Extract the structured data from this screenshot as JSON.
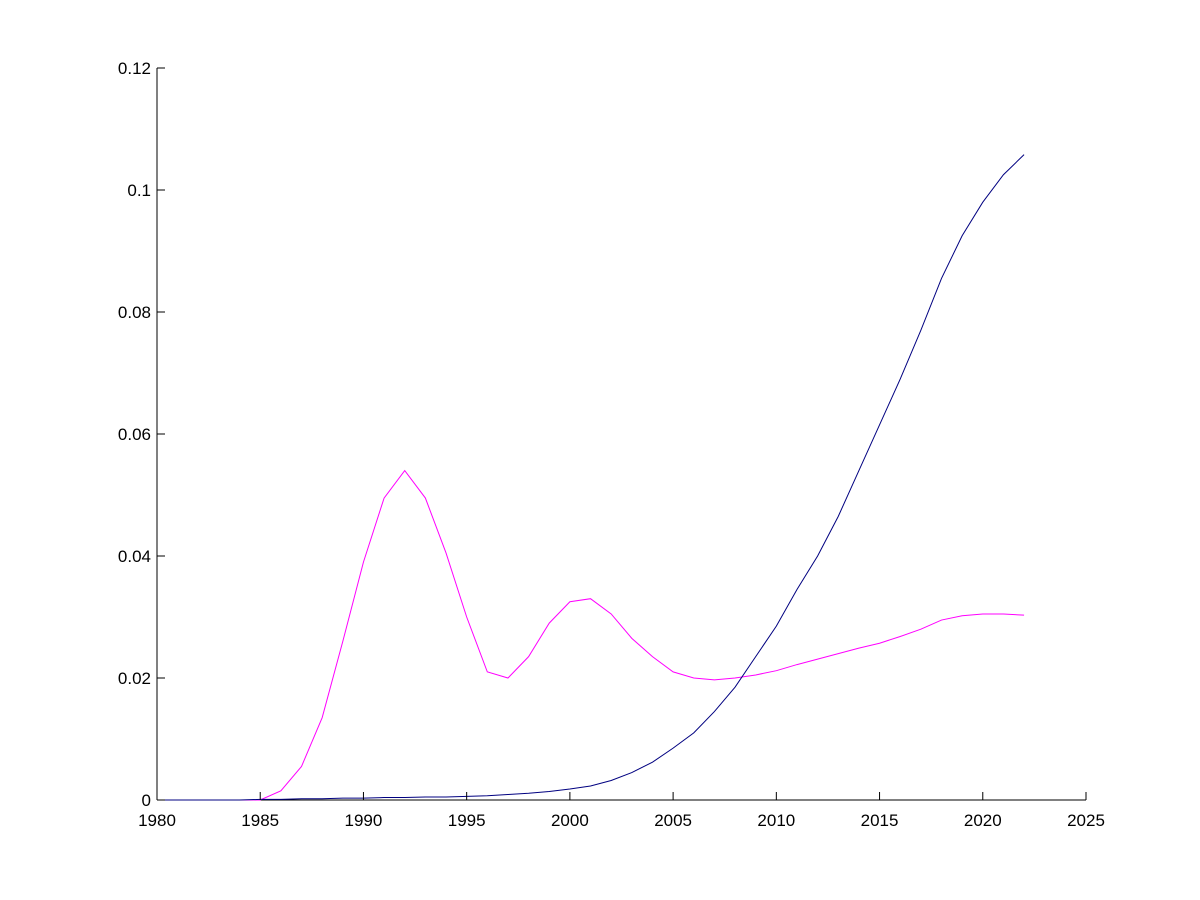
{
  "chart_data": {
    "type": "line",
    "title": "",
    "xlabel": "",
    "ylabel": "",
    "xlim": [
      1980,
      2025
    ],
    "ylim": [
      0,
      0.12
    ],
    "grid": false,
    "xticks": [
      1980,
      1985,
      1990,
      1995,
      2000,
      2005,
      2010,
      2015,
      2020,
      2025
    ],
    "xtick_labels": [
      "1980",
      "1985",
      "1990",
      "1995",
      "2000",
      "2005",
      "2010",
      "2015",
      "2020",
      "2025"
    ],
    "yticks": [
      0,
      0.02,
      0.04,
      0.06,
      0.08,
      0.1,
      0.12
    ],
    "ytick_labels": [
      "0",
      "0.02",
      "0.04",
      "0.06",
      "0.08",
      "0.1",
      "0.12"
    ],
    "series": [
      {
        "color": "#ff00ff",
        "x": [
          1980,
          1981,
          1982,
          1983,
          1984,
          1985,
          1986,
          1987,
          1988,
          1989,
          1990,
          1991,
          1992,
          1993,
          1994,
          1995,
          1996,
          1997,
          1998,
          1999,
          2000,
          2001,
          2002,
          2003,
          2004,
          2005,
          2006,
          2007,
          2008,
          2009,
          2010,
          2011,
          2012,
          2013,
          2014,
          2015,
          2016,
          2017,
          2018,
          2019,
          2020,
          2021,
          2022
        ],
        "y": [
          0,
          0,
          0,
          0,
          0,
          0,
          0.0015,
          0.0055,
          0.0135,
          0.026,
          0.039,
          0.0495,
          0.054,
          0.0495,
          0.0405,
          0.03,
          0.021,
          0.02,
          0.0235,
          0.029,
          0.0325,
          0.033,
          0.0305,
          0.0265,
          0.0235,
          0.021,
          0.02,
          0.0197,
          0.02,
          0.0205,
          0.0212,
          0.0222,
          0.0231,
          0.024,
          0.0249,
          0.0257,
          0.0268,
          0.028,
          0.0295,
          0.0302,
          0.0305,
          0.0305,
          0.0303
        ]
      },
      {
        "color": "#000080",
        "x": [
          1980,
          1981,
          1982,
          1983,
          1984,
          1985,
          1986,
          1987,
          1988,
          1989,
          1990,
          1991,
          1992,
          1993,
          1994,
          1995,
          1996,
          1997,
          1998,
          1999,
          2000,
          2001,
          2002,
          2003,
          2004,
          2005,
          2006,
          2007,
          2008,
          2009,
          2010,
          2011,
          2012,
          2013,
          2014,
          2015,
          2016,
          2017,
          2018,
          2019,
          2020,
          2021,
          2022
        ],
        "y": [
          0,
          0,
          0,
          0,
          0,
          0.0001,
          0.0001,
          0.0002,
          0.0002,
          0.0003,
          0.0003,
          0.0004,
          0.0004,
          0.0005,
          0.0005,
          0.0006,
          0.0007,
          0.0009,
          0.0011,
          0.0014,
          0.0018,
          0.0023,
          0.0032,
          0.0045,
          0.0062,
          0.0085,
          0.011,
          0.0145,
          0.0185,
          0.0235,
          0.0285,
          0.0345,
          0.04,
          0.0465,
          0.054,
          0.0615,
          0.069,
          0.077,
          0.0855,
          0.0925,
          0.098,
          0.1025,
          0.1058
        ]
      }
    ]
  }
}
